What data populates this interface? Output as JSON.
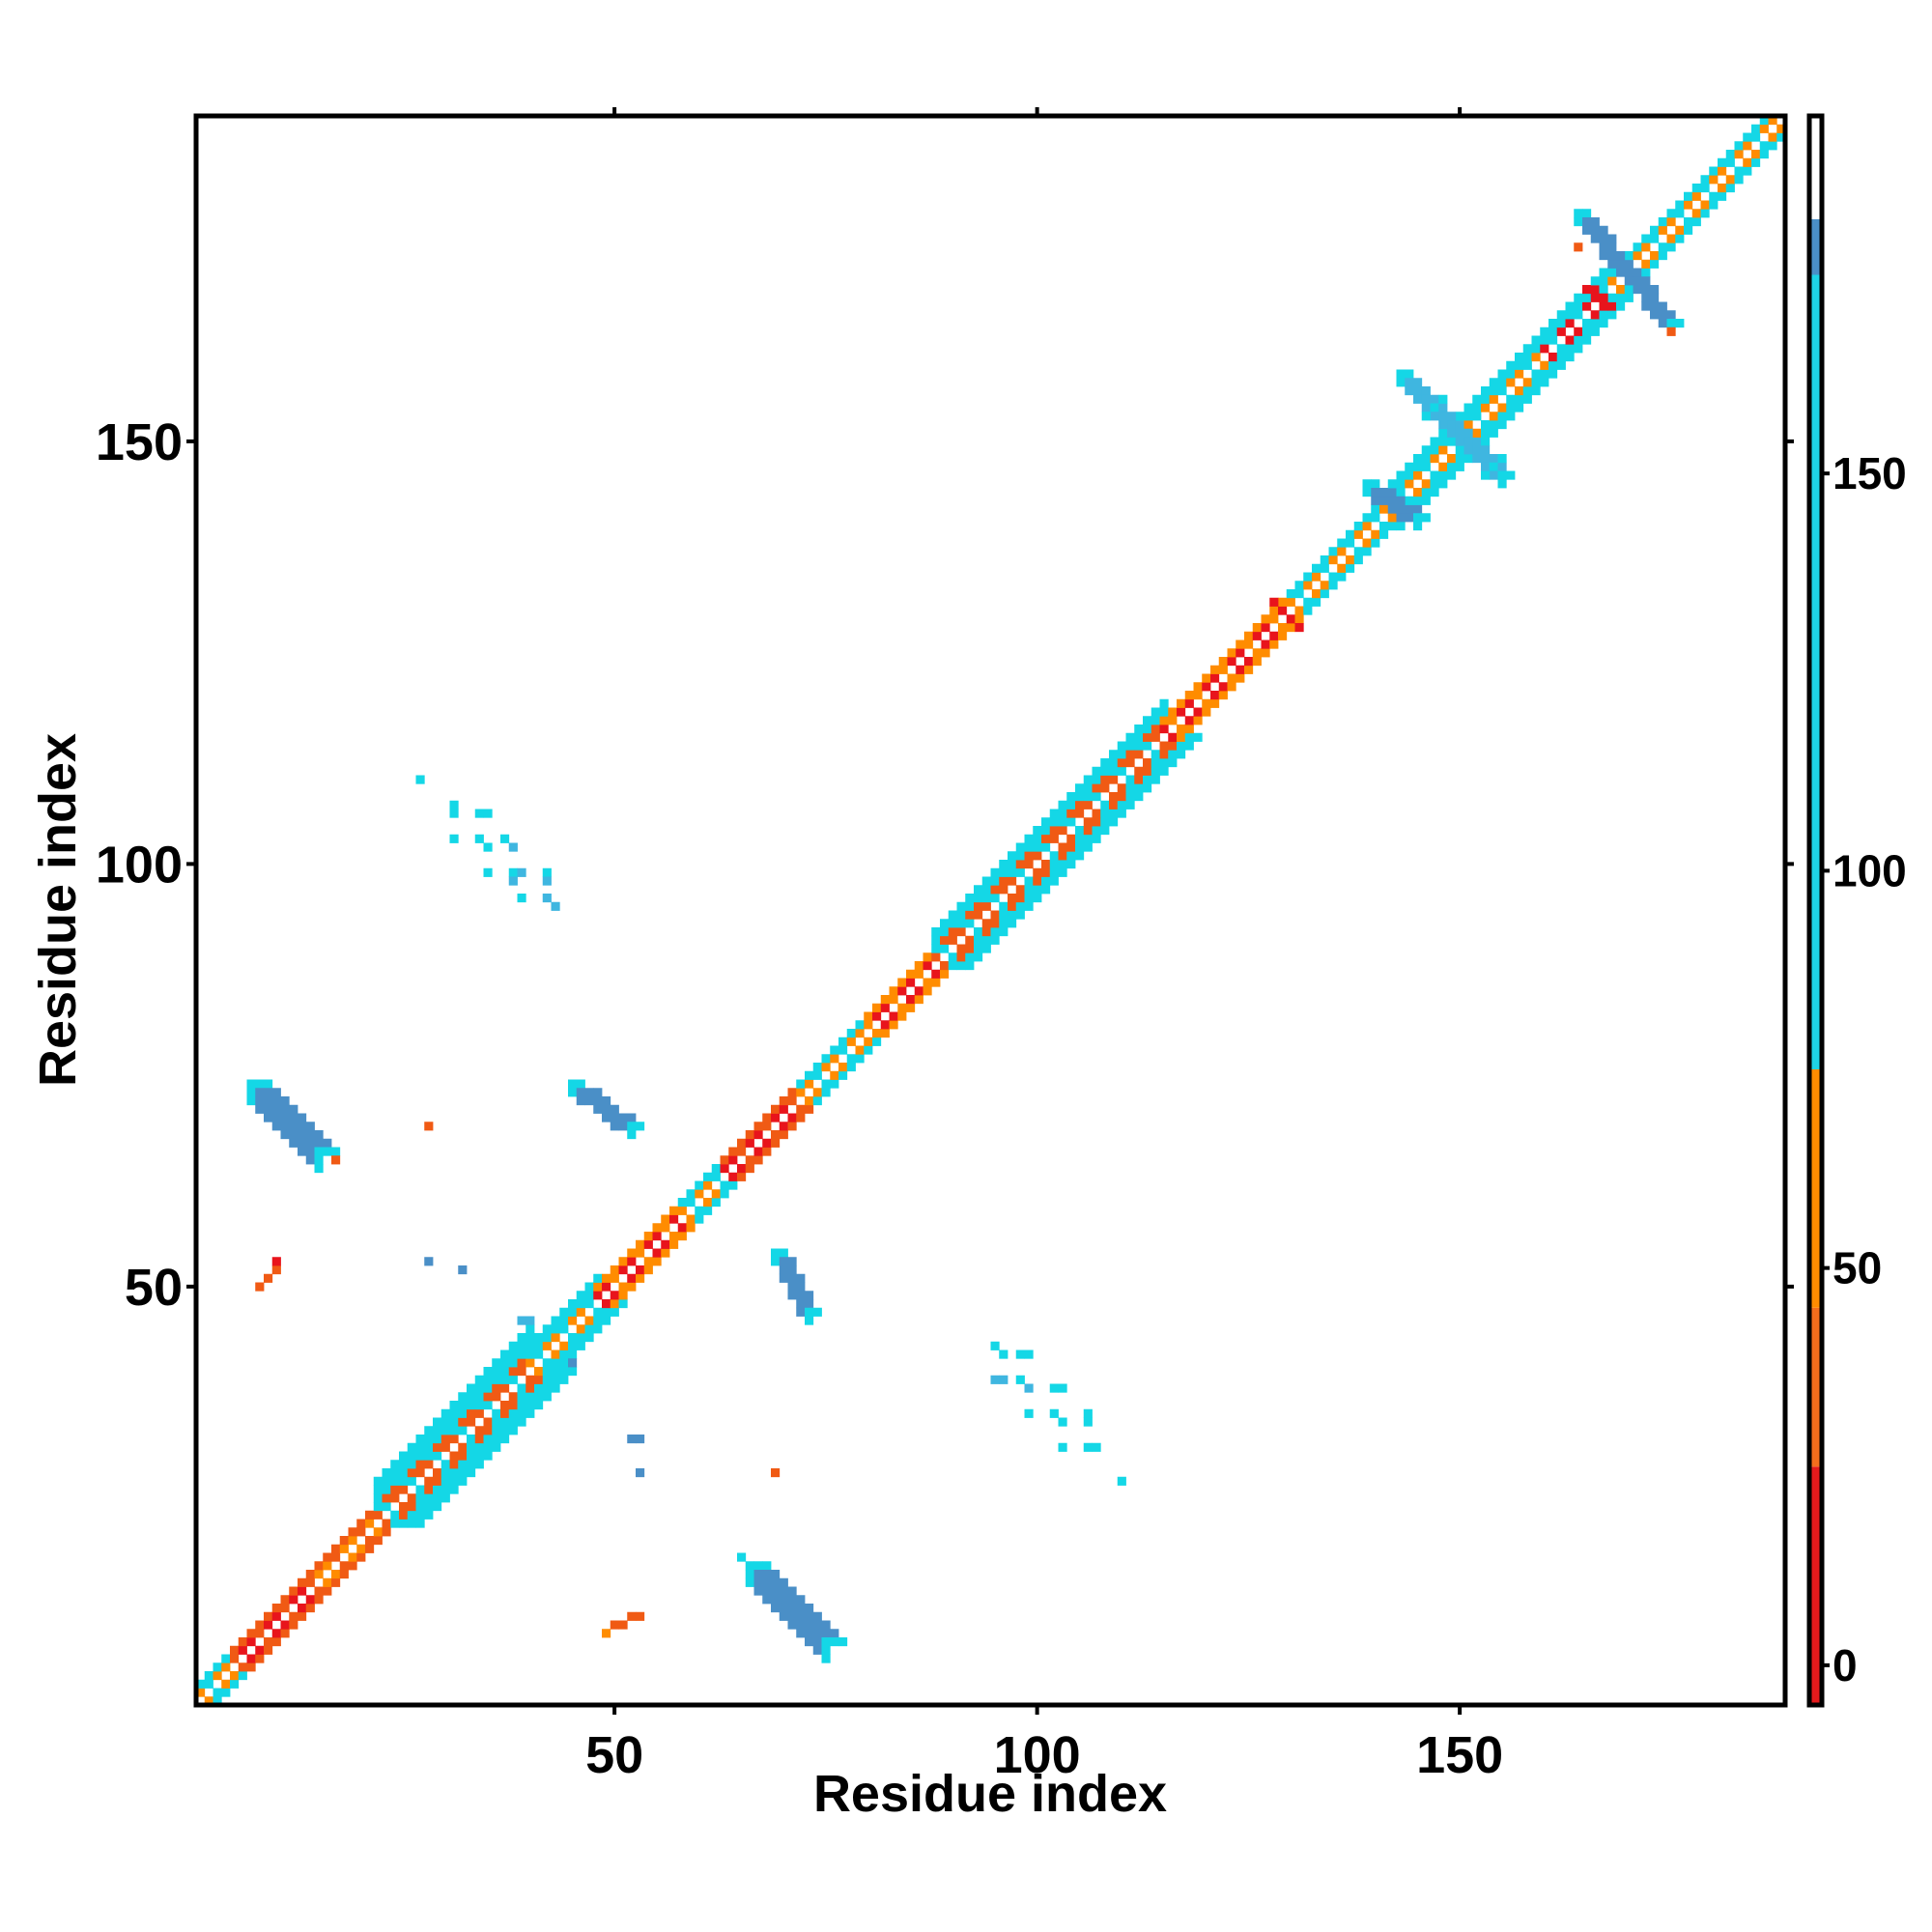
{
  "chart_data": {
    "type": "heatmap",
    "title": "",
    "xlabel": "Residue index",
    "ylabel": "Residue index",
    "xlim": [
      0.5,
      188.5
    ],
    "ylim": [
      0.5,
      188.5
    ],
    "x_ticks": [
      50,
      100,
      150
    ],
    "y_ticks": [
      50,
      100,
      150
    ],
    "grid": false,
    "colorbar": {
      "ticks": [
        0,
        50,
        100,
        150
      ],
      "range": [
        -5,
        195
      ],
      "bands": [
        {
          "from": -5,
          "to": 25,
          "color": "#e41a1c"
        },
        {
          "from": 25,
          "to": 45,
          "color": "#f46d1c"
        },
        {
          "from": 45,
          "to": 75,
          "color": "#ff8c00"
        },
        {
          "from": 75,
          "to": 175,
          "color": "#1ed3e6"
        },
        {
          "from": 175,
          "to": 182,
          "color": "#4a8fc7"
        },
        {
          "from": 182,
          "to": 195,
          "color": "#ffffff"
        }
      ]
    },
    "palette": {
      "red": "#e8141c",
      "orange_red": "#f05a14",
      "orange": "#ff8c00",
      "cyan": "#14d7e6",
      "light_blue": "#3fb6e0",
      "steel_blue": "#4a8fc7"
    },
    "diagonal_segments": [
      {
        "from": 1,
        "to": 5,
        "inner": "orange",
        "outer": "cyan",
        "width": 2
      },
      {
        "from": 5,
        "to": 14,
        "inner": "red",
        "outer": "orange_red",
        "width": 2
      },
      {
        "from": 14,
        "to": 22,
        "inner": "orange",
        "outer": "orange_red",
        "width": 2
      },
      {
        "from": 22,
        "to": 40,
        "inner": "orange_red",
        "outer": "cyan",
        "width": 5
      },
      {
        "from": 40,
        "to": 48,
        "inner": "orange",
        "outer": "cyan",
        "width": 3
      },
      {
        "from": 48,
        "to": 58,
        "inner": "red",
        "outer": "orange",
        "width": 2
      },
      {
        "from": 58,
        "to": 63,
        "inner": "orange",
        "outer": "cyan",
        "width": 2
      },
      {
        "from": 63,
        "to": 72,
        "inner": "red",
        "outer": "orange_red",
        "width": 2
      },
      {
        "from": 72,
        "to": 80,
        "inner": "orange",
        "outer": "cyan",
        "width": 2
      },
      {
        "from": 80,
        "to": 88,
        "inner": "red",
        "outer": "orange",
        "width": 2
      },
      {
        "from": 88,
        "to": 115,
        "inner": "orange_red",
        "outer": "cyan",
        "width": 4
      },
      {
        "from": 115,
        "to": 130,
        "inner": "red",
        "outer": "orange",
        "width": 2
      },
      {
        "from": 130,
        "to": 140,
        "inner": "orange",
        "outer": "cyan",
        "width": 2
      },
      {
        "from": 140,
        "to": 160,
        "inner": "orange",
        "outer": "cyan",
        "width": 3
      },
      {
        "from": 160,
        "to": 168,
        "inner": "red",
        "outer": "cyan",
        "width": 3
      },
      {
        "from": 168,
        "to": 188,
        "inner": "orange",
        "outer": "cyan",
        "width": 2
      }
    ],
    "off_diagonal_bands": [
      {
        "from": [
          7,
          74
        ],
        "to": [
          15,
          66
        ],
        "color": "steel_blue",
        "width": 2
      },
      {
        "from": [
          66,
          17
        ],
        "to": [
          75,
          8
        ],
        "color": "steel_blue",
        "width": 2
      },
      {
        "from": [
          45,
          74
        ],
        "to": [
          52,
          69
        ],
        "color": "steel_blue",
        "width": 1
      },
      {
        "from": [
          69,
          54
        ],
        "to": [
          73,
          47
        ],
        "color": "steel_blue",
        "width": 1
      },
      {
        "from": [
          164,
          177
        ],
        "to": [
          175,
          164
        ],
        "color": "steel_blue",
        "width": 1
      },
      {
        "from": [
          143,
          158
        ],
        "to": [
          155,
          146
        ],
        "color": "light_blue",
        "width": 1
      },
      {
        "from": [
          139,
          145
        ],
        "to": [
          145,
          141
        ],
        "color": "steel_blue",
        "width": 1
      }
    ],
    "scattered_cells": [
      {
        "x": 8,
        "y": 50,
        "color": "orange_red"
      },
      {
        "x": 9,
        "y": 51,
        "color": "orange_red"
      },
      {
        "x": 10,
        "y": 52,
        "color": "orange_red"
      },
      {
        "x": 10,
        "y": 53,
        "color": "red"
      },
      {
        "x": 28,
        "y": 69,
        "color": "orange_red"
      },
      {
        "x": 17,
        "y": 65,
        "color": "orange_red"
      },
      {
        "x": 28,
        "y": 53,
        "color": "steel_blue"
      },
      {
        "x": 32,
        "y": 52,
        "color": "steel_blue"
      },
      {
        "x": 27,
        "y": 110,
        "color": "cyan"
      },
      {
        "x": 31,
        "y": 107,
        "color": "cyan"
      },
      {
        "x": 31,
        "y": 106,
        "color": "cyan"
      },
      {
        "x": 34,
        "y": 106,
        "color": "cyan"
      },
      {
        "x": 35,
        "y": 106,
        "color": "cyan"
      },
      {
        "x": 31,
        "y": 103,
        "color": "cyan"
      },
      {
        "x": 34,
        "y": 103,
        "color": "cyan"
      },
      {
        "x": 35,
        "y": 102,
        "color": "cyan"
      },
      {
        "x": 37,
        "y": 103,
        "color": "cyan"
      },
      {
        "x": 38,
        "y": 102,
        "color": "light_blue"
      },
      {
        "x": 35,
        "y": 99,
        "color": "cyan"
      },
      {
        "x": 38,
        "y": 99,
        "color": "cyan"
      },
      {
        "x": 39,
        "y": 99,
        "color": "light_blue"
      },
      {
        "x": 42,
        "y": 99,
        "color": "cyan"
      },
      {
        "x": 38,
        "y": 98,
        "color": "light_blue"
      },
      {
        "x": 42,
        "y": 98,
        "color": "light_blue"
      },
      {
        "x": 39,
        "y": 96,
        "color": "cyan"
      },
      {
        "x": 42,
        "y": 96,
        "color": "light_blue"
      },
      {
        "x": 43,
        "y": 95,
        "color": "light_blue"
      },
      {
        "x": 95,
        "y": 43,
        "color": "cyan"
      },
      {
        "x": 96,
        "y": 42,
        "color": "cyan"
      },
      {
        "x": 98,
        "y": 42,
        "color": "cyan"
      },
      {
        "x": 99,
        "y": 42,
        "color": "cyan"
      },
      {
        "x": 95,
        "y": 39,
        "color": "light_blue"
      },
      {
        "x": 96,
        "y": 39,
        "color": "light_blue"
      },
      {
        "x": 98,
        "y": 39,
        "color": "cyan"
      },
      {
        "x": 99,
        "y": 38,
        "color": "light_blue"
      },
      {
        "x": 102,
        "y": 38,
        "color": "cyan"
      },
      {
        "x": 103,
        "y": 38,
        "color": "cyan"
      },
      {
        "x": 99,
        "y": 35,
        "color": "cyan"
      },
      {
        "x": 102,
        "y": 35,
        "color": "cyan"
      },
      {
        "x": 103,
        "y": 34,
        "color": "cyan"
      },
      {
        "x": 106,
        "y": 35,
        "color": "cyan"
      },
      {
        "x": 106,
        "y": 34,
        "color": "cyan"
      },
      {
        "x": 103,
        "y": 31,
        "color": "cyan"
      },
      {
        "x": 106,
        "y": 31,
        "color": "cyan"
      },
      {
        "x": 107,
        "y": 31,
        "color": "cyan"
      },
      {
        "x": 110,
        "y": 27,
        "color": "cyan"
      },
      {
        "x": 52,
        "y": 32,
        "color": "steel_blue"
      },
      {
        "x": 53,
        "y": 32,
        "color": "steel_blue"
      },
      {
        "x": 53,
        "y": 28,
        "color": "steel_blue"
      },
      {
        "x": 69,
        "y": 28,
        "color": "orange_red"
      },
      {
        "x": 50,
        "y": 10,
        "color": "orange_red"
      },
      {
        "x": 51,
        "y": 10,
        "color": "orange_red"
      },
      {
        "x": 52,
        "y": 11,
        "color": "orange_red"
      },
      {
        "x": 53,
        "y": 11,
        "color": "orange_red"
      },
      {
        "x": 49,
        "y": 9,
        "color": "orange"
      },
      {
        "x": 65,
        "y": 18,
        "color": "cyan"
      },
      {
        "x": 45,
        "y": 40,
        "color": "cyan"
      },
      {
        "x": 45,
        "y": 41,
        "color": "steel_blue"
      },
      {
        "x": 44,
        "y": 41,
        "color": "cyan"
      },
      {
        "x": 39,
        "y": 46,
        "color": "light_blue"
      },
      {
        "x": 40,
        "y": 46,
        "color": "light_blue"
      },
      {
        "x": 128,
        "y": 131,
        "color": "red"
      },
      {
        "x": 131,
        "y": 128,
        "color": "red"
      },
      {
        "x": 134,
        "y": 136,
        "color": "cyan"
      },
      {
        "x": 136,
        "y": 134,
        "color": "cyan"
      },
      {
        "x": 164,
        "y": 173,
        "color": "orange_red"
      },
      {
        "x": 175,
        "y": 163,
        "color": "orange_red"
      },
      {
        "x": 166,
        "y": 167,
        "color": "red"
      },
      {
        "x": 167,
        "y": 166,
        "color": "red"
      },
      {
        "x": 167,
        "y": 167,
        "color": "red"
      },
      {
        "x": 168,
        "y": 166,
        "color": "red"
      },
      {
        "x": 166,
        "y": 168,
        "color": "red"
      },
      {
        "x": 165,
        "y": 168,
        "color": "red"
      },
      {
        "x": 148,
        "y": 155,
        "color": "cyan"
      },
      {
        "x": 155,
        "y": 148,
        "color": "cyan"
      },
      {
        "x": 147,
        "y": 154,
        "color": "cyan"
      },
      {
        "x": 154,
        "y": 147,
        "color": "cyan"
      },
      {
        "x": 146,
        "y": 153,
        "color": "cyan"
      },
      {
        "x": 153,
        "y": 146,
        "color": "cyan"
      },
      {
        "x": 145,
        "y": 148,
        "color": "cyan"
      },
      {
        "x": 148,
        "y": 145,
        "color": "cyan"
      }
    ]
  }
}
